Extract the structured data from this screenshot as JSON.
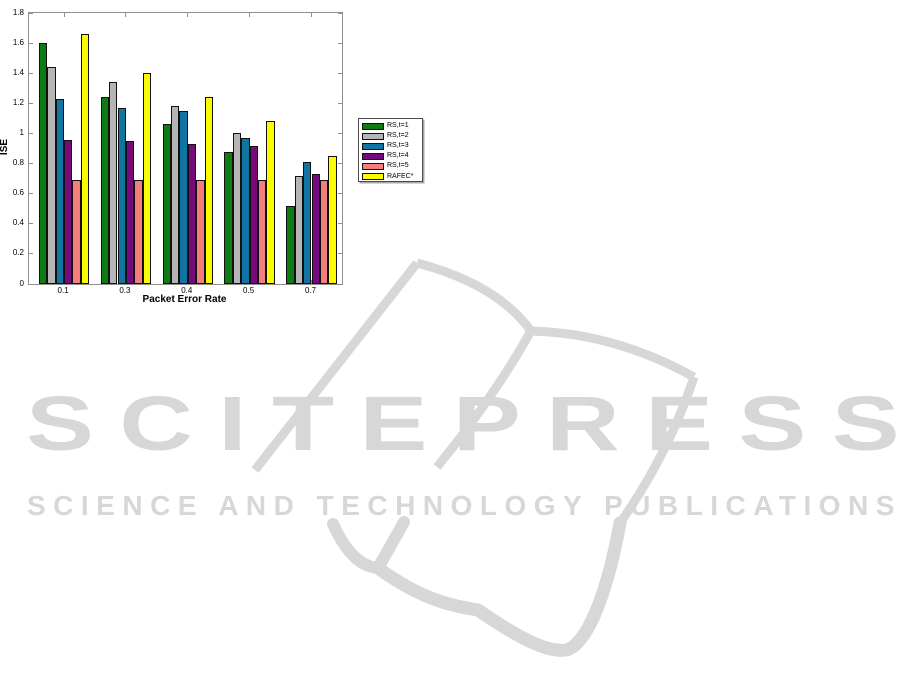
{
  "chart_data": {
    "type": "bar",
    "title": "",
    "xlabel": "Packet Error Rate",
    "ylabel": "ISE",
    "categories": [
      "0.1",
      "0.3",
      "0.4",
      "0.5",
      "0.7"
    ],
    "series": [
      {
        "name": "RS,t=1",
        "color": "#0e7c12",
        "values": [
          1.6,
          1.24,
          1.06,
          0.88,
          0.52
        ]
      },
      {
        "name": "RS,t=2",
        "color": "#b5b5b5",
        "values": [
          1.44,
          1.34,
          1.18,
          1.0,
          0.72
        ]
      },
      {
        "name": "RS,t=3",
        "color": "#1174a2",
        "values": [
          1.23,
          1.17,
          1.15,
          0.97,
          0.81
        ]
      },
      {
        "name": "RS,t=4",
        "color": "#770a7a",
        "values": [
          0.96,
          0.95,
          0.93,
          0.92,
          0.73
        ]
      },
      {
        "name": "RS,t=5",
        "color": "#f47e7c",
        "values": [
          0.69,
          0.69,
          0.69,
          0.69,
          0.69
        ]
      },
      {
        "name": "RAFEC*",
        "color": "#fcfc00",
        "values": [
          1.66,
          1.4,
          1.24,
          1.08,
          0.85
        ]
      }
    ],
    "ylim": [
      0,
      1.8
    ],
    "yticks": [
      0,
      0.2,
      0.4,
      0.6,
      0.8,
      1,
      1.2,
      1.4,
      1.6,
      1.8
    ],
    "grid": false,
    "legend_position": "outside-right",
    "axis_color": "#8f8f8f",
    "bar_edge_color": "#111111"
  },
  "watermark": {
    "title": "SCITEPRESS",
    "subtitle": "SCIENCE AND TECHNOLOGY PUBLICATIONS",
    "color": "#d7d7d7"
  }
}
